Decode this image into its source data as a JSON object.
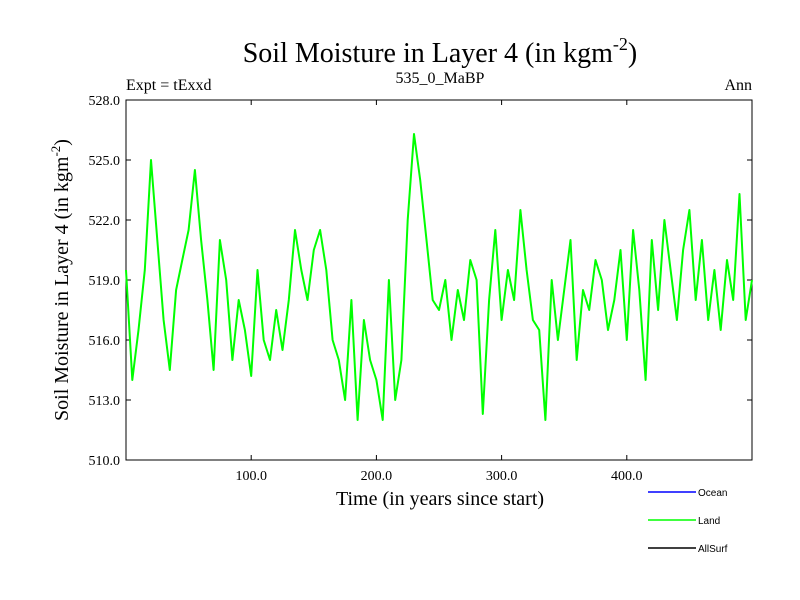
{
  "chart_data": {
    "type": "line",
    "title": "Soil Moisture in Layer 4 (in kgm",
    "title_superscript": "-2",
    "title_close": ")",
    "subtitle_left": "Expt = tExxd",
    "subtitle_center": "535_0_MaBP",
    "subtitle_right": "Ann",
    "xlabel": "Time (in years since start)",
    "ylabel": "Soil Moisture in Layer 4 (in kgm",
    "ylabel_superscript": "-2",
    "ylabel_close": ")",
    "xlim": [
      0,
      500
    ],
    "ylim": [
      510,
      528
    ],
    "xticks": [
      100,
      200,
      300,
      400
    ],
    "xtick_labels": [
      "100.0",
      "200.0",
      "300.0",
      "400.0"
    ],
    "yticks": [
      510,
      513,
      516,
      519,
      522,
      525,
      528
    ],
    "ytick_labels": [
      "510.0",
      "513.0",
      "516.0",
      "519.0",
      "522.0",
      "525.0",
      "528.0"
    ],
    "legend": [
      {
        "name": "Ocean",
        "color": "#0000ff"
      },
      {
        "name": "Land",
        "color": "#00ff00"
      },
      {
        "name": "AllSurf",
        "color": "#000000"
      }
    ],
    "series": [
      {
        "name": "Land",
        "color": "#00ff00",
        "x": [
          0,
          5,
          10,
          15,
          20,
          25,
          30,
          35,
          40,
          45,
          50,
          55,
          60,
          65,
          70,
          75,
          80,
          85,
          90,
          95,
          100,
          105,
          110,
          115,
          120,
          125,
          130,
          135,
          140,
          145,
          150,
          155,
          160,
          165,
          170,
          175,
          180,
          185,
          190,
          195,
          200,
          205,
          210,
          215,
          220,
          225,
          230,
          235,
          240,
          245,
          250,
          255,
          260,
          265,
          270,
          275,
          280,
          285,
          290,
          295,
          300,
          305,
          310,
          315,
          320,
          325,
          330,
          335,
          340,
          345,
          350,
          355,
          360,
          365,
          370,
          375,
          380,
          385,
          390,
          395,
          400,
          405,
          410,
          415,
          420,
          425,
          430,
          435,
          440,
          445,
          450,
          455,
          460,
          465,
          470,
          475,
          480,
          485,
          490,
          495,
          500
        ],
        "values": [
          519.5,
          514.0,
          516.5,
          519.5,
          525.0,
          521.0,
          517.0,
          514.5,
          518.5,
          520.0,
          521.5,
          524.5,
          521.0,
          518.0,
          514.5,
          521.0,
          519.0,
          515.0,
          518.0,
          516.5,
          514.2,
          519.5,
          516.0,
          515.0,
          517.5,
          515.5,
          518.0,
          521.5,
          519.5,
          518.0,
          520.5,
          521.5,
          519.5,
          516.0,
          515.0,
          513.0,
          518.0,
          512.0,
          517.0,
          515.0,
          514.0,
          512.0,
          519.0,
          513.0,
          515.0,
          522.0,
          526.3,
          524.0,
          521.0,
          518.0,
          517.5,
          519.0,
          516.0,
          518.5,
          517.0,
          520.0,
          519.0,
          512.3,
          518.0,
          521.5,
          517.0,
          519.5,
          518.0,
          522.5,
          519.5,
          517.0,
          516.5,
          512.0,
          519.0,
          516.0,
          518.5,
          521.0,
          515.0,
          518.5,
          517.5,
          520.0,
          519.0,
          516.5,
          518.0,
          520.5,
          516.0,
          521.5,
          518.5,
          514.0,
          521.0,
          517.5,
          522.0,
          519.5,
          517.0,
          520.5,
          522.5,
          518.0,
          521.0,
          517.0,
          519.5,
          516.5,
          520.0,
          518.0,
          523.3,
          517.0,
          519.0
        ]
      }
    ]
  }
}
